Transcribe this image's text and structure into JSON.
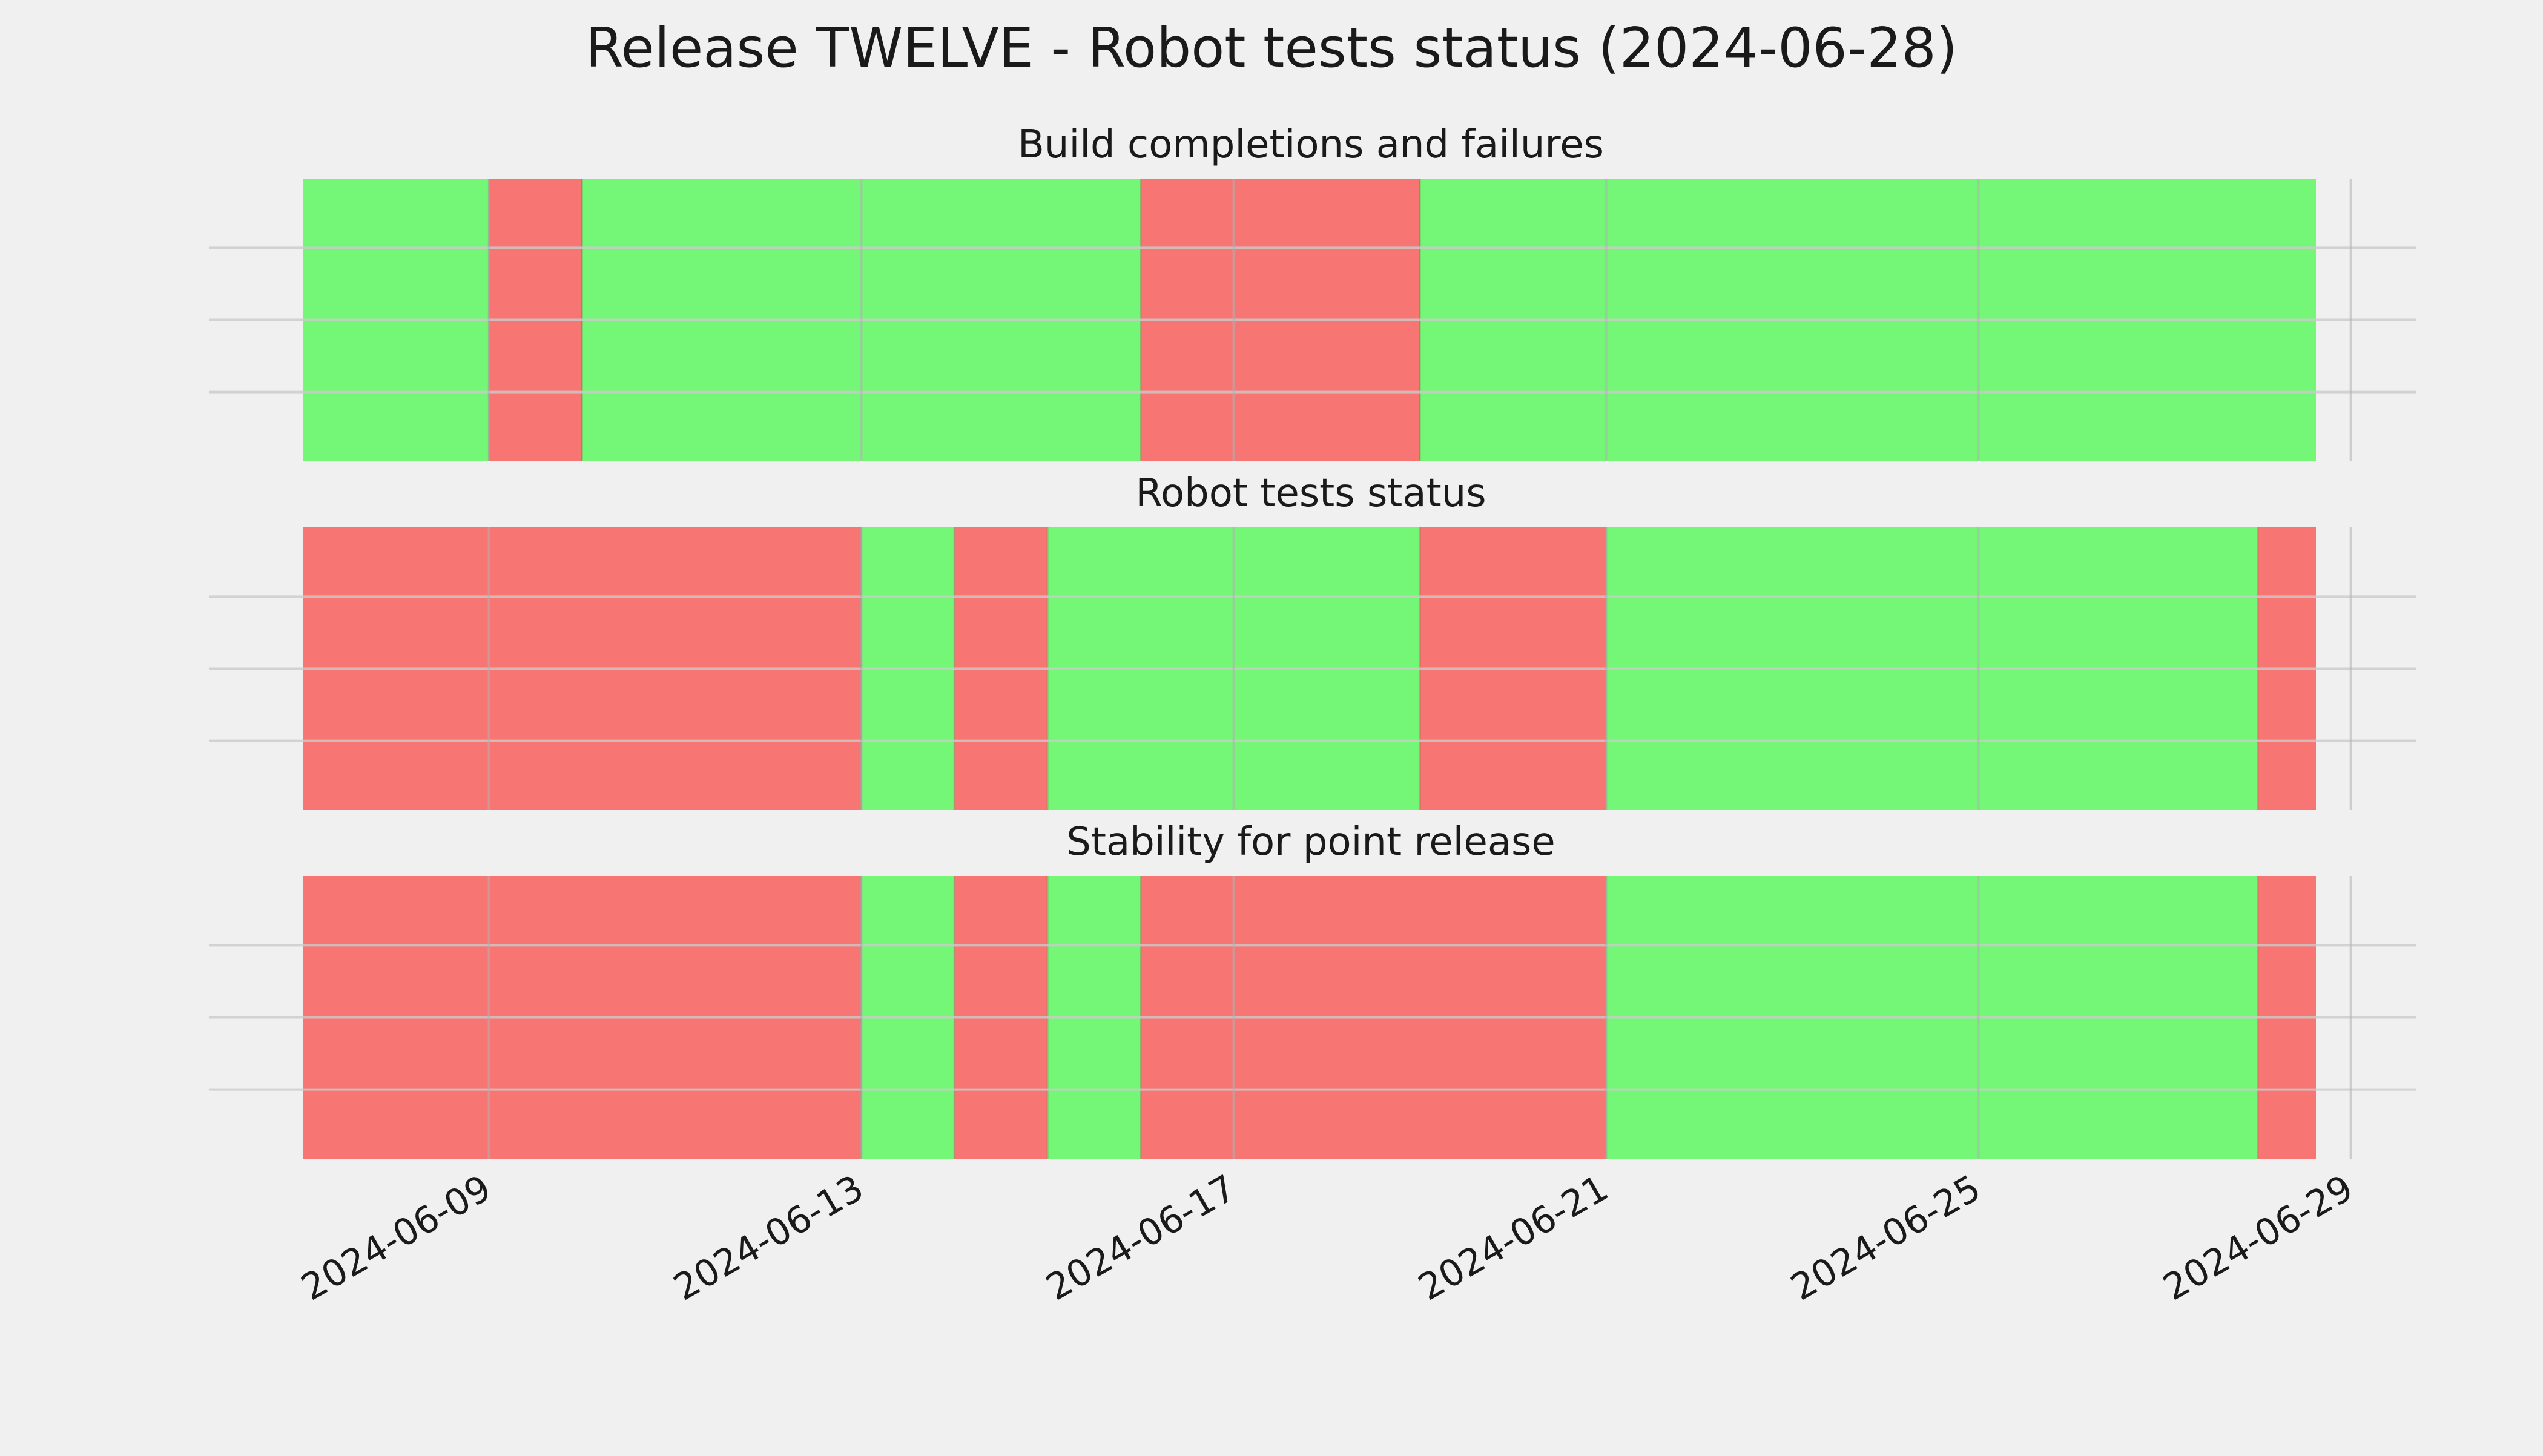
{
  "chart_data": {
    "type": "timeline",
    "title": "Release TWELVE - Robot tests status (2024-06-28)",
    "xlabel": "",
    "ylabel": "",
    "x_ticks": [
      "2024-06-09",
      "2024-06-13",
      "2024-06-17",
      "2024-06-21",
      "2024-06-25",
      "2024-06-29"
    ],
    "xlim": [
      "2024-06-07",
      "2024-06-29"
    ],
    "grid": true,
    "colors": {
      "pass": "#74f776",
      "fail": "#f77674",
      "background": "#f0f0f0",
      "grid": "#cbcbcb"
    },
    "panels": [
      {
        "title": "Build completions and failures",
        "segments": [
          {
            "start": "2024-06-07",
            "end": "2024-06-09",
            "status": "pass"
          },
          {
            "start": "2024-06-09",
            "end": "2024-06-10",
            "status": "fail"
          },
          {
            "start": "2024-06-10",
            "end": "2024-06-16",
            "status": "pass"
          },
          {
            "start": "2024-06-16",
            "end": "2024-06-19",
            "status": "fail"
          },
          {
            "start": "2024-06-19",
            "end": "2024-06-28 15:00",
            "status": "pass"
          }
        ]
      },
      {
        "title": "Robot tests status",
        "segments": [
          {
            "start": "2024-06-07",
            "end": "2024-06-13",
            "status": "fail"
          },
          {
            "start": "2024-06-13",
            "end": "2024-06-14",
            "status": "pass"
          },
          {
            "start": "2024-06-14",
            "end": "2024-06-15",
            "status": "fail"
          },
          {
            "start": "2024-06-15",
            "end": "2024-06-19",
            "status": "pass"
          },
          {
            "start": "2024-06-19",
            "end": "2024-06-21",
            "status": "fail"
          },
          {
            "start": "2024-06-21",
            "end": "2024-06-28",
            "status": "pass"
          },
          {
            "start": "2024-06-28",
            "end": "2024-06-28 15:00",
            "status": "fail"
          }
        ]
      },
      {
        "title": "Stability for point release",
        "segments": [
          {
            "start": "2024-06-07",
            "end": "2024-06-13",
            "status": "fail"
          },
          {
            "start": "2024-06-13",
            "end": "2024-06-14",
            "status": "pass"
          },
          {
            "start": "2024-06-14",
            "end": "2024-06-15",
            "status": "fail"
          },
          {
            "start": "2024-06-15",
            "end": "2024-06-16",
            "status": "pass"
          },
          {
            "start": "2024-06-16",
            "end": "2024-06-21",
            "status": "fail"
          },
          {
            "start": "2024-06-21",
            "end": "2024-06-28",
            "status": "pass"
          },
          {
            "start": "2024-06-28",
            "end": "2024-06-28 15:00",
            "status": "fail"
          }
        ]
      }
    ]
  }
}
